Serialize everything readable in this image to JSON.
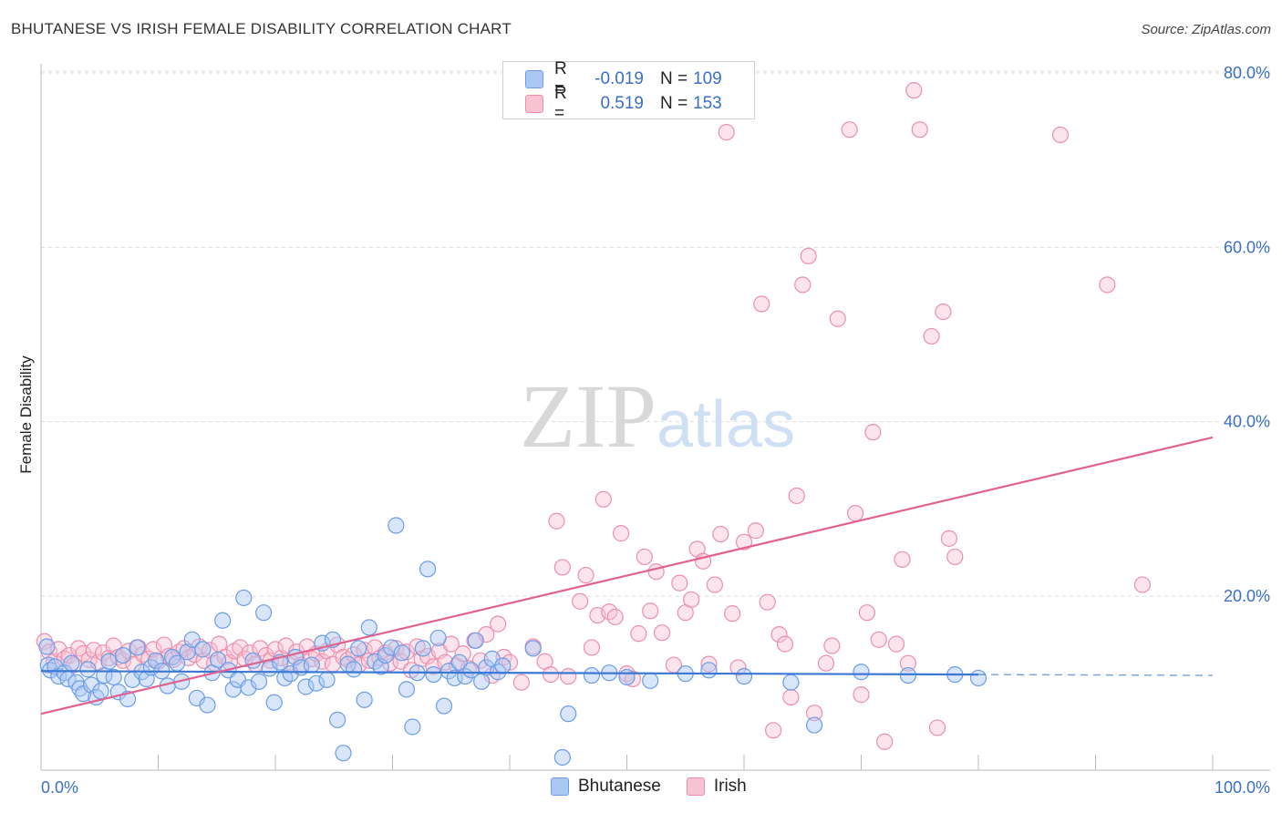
{
  "title": "BHUTANESE VS IRISH FEMALE DISABILITY CORRELATION CHART",
  "source": "Source: ZipAtlas.com",
  "watermark": {
    "zip": "ZIP",
    "atlas": "atlas"
  },
  "legend": {
    "rows": [
      {
        "r_label": "R =",
        "r_value": "-0.019",
        "n_label": "N =",
        "n_value": "109"
      },
      {
        "r_label": "R =",
        "r_value": "0.519",
        "n_label": "N =",
        "n_value": "153"
      }
    ]
  },
  "colors": {
    "blue_fill": "#aac8f4",
    "blue_stroke": "#6b9de6",
    "blue_line": "#3b78d4",
    "pink_fill": "#f7c3d3",
    "pink_stroke": "#ec8fae",
    "pink_line": "#e0628f",
    "axis_text": "#3a6fc4",
    "grid": "#dddddd"
  },
  "chart_data": {
    "type": "scatter",
    "title": "BHUTANESE VS IRISH FEMALE DISABILITY CORRELATION CHART",
    "xlabel": "",
    "ylabel": "Female Disability",
    "xlim": [
      0,
      100
    ],
    "ylim": [
      0,
      82
    ],
    "x_tick_labels": [
      "0.0%",
      "100.0%"
    ],
    "y_ticks": [
      20,
      40,
      60,
      80
    ],
    "y_tick_labels": [
      "20.0%",
      "40.0%",
      "60.0%",
      "80.0%"
    ],
    "legend": [
      "Bhutanese",
      "Irish"
    ],
    "series": [
      {
        "name": "Bhutanese",
        "r": -0.019,
        "n": 109,
        "trend": {
          "x0": 0,
          "y0": 11.4,
          "x1": 80,
          "y1": 11.0,
          "dash_to": 100,
          "dash_y": 10.9
        },
        "points": [
          [
            0.5,
            14.2
          ],
          [
            0.6,
            12.1
          ],
          [
            0.8,
            11.5
          ],
          [
            1.2,
            11.9
          ],
          [
            1.5,
            10.8
          ],
          [
            2.0,
            11.2
          ],
          [
            2.3,
            10.5
          ],
          [
            2.6,
            12.3
          ],
          [
            3.0,
            10.1
          ],
          [
            3.3,
            9.4
          ],
          [
            3.6,
            8.8
          ],
          [
            4.0,
            11.6
          ],
          [
            4.3,
            9.8
          ],
          [
            4.7,
            8.4
          ],
          [
            5.1,
            9.1
          ],
          [
            5.4,
            10.9
          ],
          [
            5.8,
            12.5
          ],
          [
            6.2,
            10.7
          ],
          [
            6.6,
            9.0
          ],
          [
            7.0,
            13.2
          ],
          [
            7.4,
            8.2
          ],
          [
            7.8,
            10.4
          ],
          [
            8.2,
            14.1
          ],
          [
            8.6,
            11.3
          ],
          [
            9.0,
            10.5
          ],
          [
            9.4,
            11.8
          ],
          [
            9.8,
            12.6
          ],
          [
            10.3,
            11.4
          ],
          [
            10.8,
            9.7
          ],
          [
            11.2,
            13.0
          ],
          [
            11.6,
            12.3
          ],
          [
            12.0,
            10.2
          ],
          [
            12.5,
            13.6
          ],
          [
            12.9,
            15.0
          ],
          [
            13.3,
            8.3
          ],
          [
            13.8,
            13.9
          ],
          [
            14.2,
            7.5
          ],
          [
            14.6,
            11.2
          ],
          [
            15.1,
            12.7
          ],
          [
            15.5,
            17.2
          ],
          [
            16.0,
            11.5
          ],
          [
            16.4,
            9.3
          ],
          [
            16.8,
            10.4
          ],
          [
            17.3,
            19.8
          ],
          [
            17.7,
            9.5
          ],
          [
            18.1,
            12.6
          ],
          [
            18.6,
            10.2
          ],
          [
            19.0,
            18.1
          ],
          [
            19.5,
            11.7
          ],
          [
            19.9,
            7.8
          ],
          [
            20.4,
            12.4
          ],
          [
            20.8,
            10.6
          ],
          [
            21.3,
            11.1
          ],
          [
            21.7,
            13.0
          ],
          [
            22.2,
            11.8
          ],
          [
            22.6,
            9.6
          ],
          [
            23.1,
            12.1
          ],
          [
            23.5,
            10.0
          ],
          [
            24.0,
            14.6
          ],
          [
            24.4,
            10.4
          ],
          [
            24.9,
            15.0
          ],
          [
            25.3,
            5.8
          ],
          [
            25.8,
            2.0
          ],
          [
            26.2,
            12.2
          ],
          [
            26.7,
            11.6
          ],
          [
            27.1,
            14.0
          ],
          [
            27.6,
            8.1
          ],
          [
            28.0,
            16.4
          ],
          [
            28.5,
            12.5
          ],
          [
            29.0,
            11.9
          ],
          [
            29.4,
            13.2
          ],
          [
            29.9,
            14.1
          ],
          [
            30.3,
            28.1
          ],
          [
            30.8,
            13.5
          ],
          [
            31.2,
            9.3
          ],
          [
            31.7,
            5.0
          ],
          [
            32.1,
            11.2
          ],
          [
            32.6,
            14.0
          ],
          [
            33.0,
            23.1
          ],
          [
            33.5,
            11.0
          ],
          [
            33.9,
            15.2
          ],
          [
            34.4,
            7.4
          ],
          [
            34.8,
            11.4
          ],
          [
            35.3,
            10.6
          ],
          [
            35.7,
            12.4
          ],
          [
            36.2,
            10.8
          ],
          [
            36.7,
            11.5
          ],
          [
            37.1,
            14.9
          ],
          [
            37.6,
            10.2
          ],
          [
            38.0,
            11.8
          ],
          [
            38.5,
            12.8
          ],
          [
            39.0,
            11.3
          ],
          [
            39.4,
            12.0
          ],
          [
            42.0,
            14.0
          ],
          [
            44.5,
            1.5
          ],
          [
            45.0,
            6.5
          ],
          [
            47.0,
            10.9
          ],
          [
            48.5,
            11.2
          ],
          [
            50.0,
            10.7
          ],
          [
            52.0,
            10.3
          ],
          [
            55.0,
            11.1
          ],
          [
            57.0,
            11.5
          ],
          [
            60.0,
            10.8
          ],
          [
            66.0,
            5.2
          ],
          [
            78.0,
            11.0
          ],
          [
            80.0,
            10.6
          ],
          [
            64.0,
            10.1
          ],
          [
            70.0,
            11.3
          ],
          [
            74.0,
            10.9
          ]
        ]
      },
      {
        "name": "Irish",
        "r": 0.519,
        "n": 153,
        "trend": {
          "x0": 0,
          "y0": 6.5,
          "x1": 100,
          "y1": 38.2
        },
        "points": [
          [
            0.3,
            14.8
          ],
          [
            0.7,
            13.6
          ],
          [
            1.1,
            12.5
          ],
          [
            1.5,
            13.9
          ],
          [
            2.0,
            12.8
          ],
          [
            2.4,
            13.2
          ],
          [
            2.8,
            12.1
          ],
          [
            3.2,
            14.0
          ],
          [
            3.6,
            13.4
          ],
          [
            4.1,
            12.7
          ],
          [
            4.5,
            13.8
          ],
          [
            4.9,
            12.4
          ],
          [
            5.3,
            13.5
          ],
          [
            5.8,
            12.9
          ],
          [
            6.2,
            14.3
          ],
          [
            6.6,
            13.0
          ],
          [
            7.0,
            12.6
          ],
          [
            7.5,
            13.7
          ],
          [
            7.9,
            12.2
          ],
          [
            8.3,
            14.1
          ],
          [
            8.7,
            13.3
          ],
          [
            9.2,
            12.8
          ],
          [
            9.6,
            13.9
          ],
          [
            10.0,
            12.5
          ],
          [
            10.5,
            14.4
          ],
          [
            10.9,
            13.1
          ],
          [
            11.3,
            12.7
          ],
          [
            11.8,
            13.6
          ],
          [
            12.2,
            14.0
          ],
          [
            12.6,
            12.9
          ],
          [
            13.1,
            13.3
          ],
          [
            13.5,
            14.2
          ],
          [
            13.9,
            12.6
          ],
          [
            14.4,
            13.8
          ],
          [
            14.8,
            12.3
          ],
          [
            15.2,
            14.5
          ],
          [
            15.7,
            13.0
          ],
          [
            16.1,
            12.4
          ],
          [
            16.5,
            13.7
          ],
          [
            17.0,
            14.1
          ],
          [
            17.4,
            12.8
          ],
          [
            17.8,
            13.5
          ],
          [
            18.3,
            12.2
          ],
          [
            18.7,
            14.0
          ],
          [
            19.2,
            13.2
          ],
          [
            19.6,
            12.6
          ],
          [
            20.0,
            13.9
          ],
          [
            20.5,
            12.9
          ],
          [
            20.9,
            14.3
          ],
          [
            21.3,
            12.4
          ],
          [
            21.8,
            13.6
          ],
          [
            22.2,
            12.1
          ],
          [
            22.7,
            14.2
          ],
          [
            23.1,
            12.8
          ],
          [
            23.5,
            13.4
          ],
          [
            24.0,
            12.5
          ],
          [
            24.4,
            13.7
          ],
          [
            24.9,
            12.2
          ],
          [
            25.3,
            14.4
          ],
          [
            25.8,
            13.0
          ],
          [
            26.2,
            12.7
          ],
          [
            26.7,
            13.3
          ],
          [
            27.1,
            12.1
          ],
          [
            27.6,
            13.8
          ],
          [
            28.0,
            12.6
          ],
          [
            28.5,
            14.1
          ],
          [
            28.9,
            12.9
          ],
          [
            29.4,
            13.5
          ],
          [
            29.8,
            12.3
          ],
          [
            30.3,
            14.0
          ],
          [
            30.7,
            12.5
          ],
          [
            31.2,
            13.6
          ],
          [
            31.6,
            11.5
          ],
          [
            32.1,
            14.2
          ],
          [
            32.5,
            12.8
          ],
          [
            33.0,
            13.1
          ],
          [
            33.5,
            11.9
          ],
          [
            34.0,
            13.7
          ],
          [
            34.5,
            12.4
          ],
          [
            35.0,
            14.5
          ],
          [
            35.5,
            12.0
          ],
          [
            36.0,
            13.4
          ],
          [
            36.5,
            11.7
          ],
          [
            37.0,
            14.9
          ],
          [
            37.5,
            12.6
          ],
          [
            38.0,
            15.6
          ],
          [
            38.5,
            10.9
          ],
          [
            39.0,
            16.8
          ],
          [
            39.5,
            13.0
          ],
          [
            40.0,
            12.4
          ],
          [
            41.0,
            10.1
          ],
          [
            42.0,
            14.2
          ],
          [
            43.0,
            12.5
          ],
          [
            43.5,
            11.0
          ],
          [
            44.0,
            28.6
          ],
          [
            44.5,
            23.3
          ],
          [
            45.0,
            10.8
          ],
          [
            46.0,
            19.4
          ],
          [
            46.5,
            22.4
          ],
          [
            47.0,
            14.1
          ],
          [
            47.5,
            17.8
          ],
          [
            48.0,
            31.1
          ],
          [
            48.5,
            18.2
          ],
          [
            49.0,
            17.6
          ],
          [
            49.5,
            27.2
          ],
          [
            50.0,
            11.1
          ],
          [
            51.0,
            15.7
          ],
          [
            51.5,
            24.5
          ],
          [
            52.0,
            18.3
          ],
          [
            52.5,
            22.8
          ],
          [
            53.0,
            15.8
          ],
          [
            54.0,
            12.1
          ],
          [
            54.5,
            21.5
          ],
          [
            55.0,
            18.1
          ],
          [
            55.5,
            19.6
          ],
          [
            56.0,
            25.4
          ],
          [
            56.5,
            24.0
          ],
          [
            57.0,
            12.2
          ],
          [
            57.5,
            21.3
          ],
          [
            58.0,
            27.1
          ],
          [
            58.5,
            73.2
          ],
          [
            59.0,
            18.0
          ],
          [
            59.5,
            11.8
          ],
          [
            60.0,
            26.2
          ],
          [
            61.0,
            27.5
          ],
          [
            61.5,
            53.5
          ],
          [
            62.0,
            19.3
          ],
          [
            62.5,
            4.6
          ],
          [
            63.0,
            15.6
          ],
          [
            63.5,
            14.5
          ],
          [
            64.0,
            8.4
          ],
          [
            64.5,
            31.5
          ],
          [
            65.0,
            55.7
          ],
          [
            65.5,
            59.0
          ],
          [
            66.0,
            6.6
          ],
          [
            67.0,
            12.3
          ],
          [
            67.5,
            14.3
          ],
          [
            68.0,
            51.8
          ],
          [
            69.0,
            73.5
          ],
          [
            69.5,
            29.5
          ],
          [
            70.0,
            8.7
          ],
          [
            70.5,
            18.1
          ],
          [
            71.0,
            38.8
          ],
          [
            71.5,
            15.0
          ],
          [
            72.0,
            3.3
          ],
          [
            73.0,
            14.5
          ],
          [
            73.5,
            24.2
          ],
          [
            74.0,
            12.3
          ],
          [
            74.5,
            78.0
          ],
          [
            75.0,
            73.5
          ],
          [
            76.0,
            49.8
          ],
          [
            76.5,
            4.9
          ],
          [
            77.0,
            52.6
          ],
          [
            77.5,
            26.6
          ],
          [
            78.0,
            24.5
          ],
          [
            87.0,
            72.9
          ],
          [
            91.0,
            55.7
          ],
          [
            94.0,
            21.3
          ],
          [
            50.5,
            10.5
          ]
        ]
      }
    ]
  }
}
